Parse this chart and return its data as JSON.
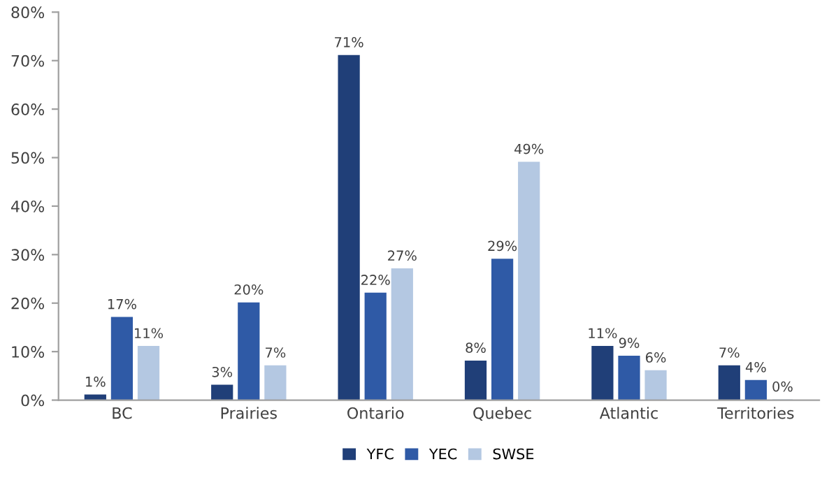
{
  "chart_data": {
    "type": "bar",
    "categories": [
      "BC",
      "Prairies",
      "Ontario",
      "Quebec",
      "Atlantic",
      "Territories"
    ],
    "series": [
      {
        "name": "YFC",
        "color": "#203f78",
        "values": [
          1,
          3,
          71,
          8,
          11,
          7
        ],
        "value_labels": [
          "1%",
          "3%",
          "71%",
          "8%",
          "11%",
          "7%"
        ]
      },
      {
        "name": "YEC",
        "color": "#2f5aa6",
        "values": [
          17,
          20,
          22,
          29,
          9,
          4
        ],
        "value_labels": [
          "17%",
          "20%",
          "22%",
          "29%",
          "9%",
          "4%"
        ]
      },
      {
        "name": "SWSE",
        "color": "#b4c8e2",
        "values": [
          11,
          7,
          27,
          49,
          6,
          0
        ],
        "value_labels": [
          "11%",
          "7%",
          "27%",
          "49%",
          "6%",
          "0%"
        ]
      }
    ],
    "ylim": [
      0,
      80
    ],
    "yticks": [
      {
        "value": 0,
        "label": "0%"
      },
      {
        "value": 10,
        "label": "10%"
      },
      {
        "value": 20,
        "label": "20%"
      },
      {
        "value": 30,
        "label": "30%"
      },
      {
        "value": 40,
        "label": "40%"
      },
      {
        "value": 50,
        "label": "50%"
      },
      {
        "value": 60,
        "label": "60%"
      },
      {
        "value": 70,
        "label": "70%"
      },
      {
        "value": 80,
        "label": "80%"
      }
    ],
    "grid": false,
    "legend": "bottom"
  }
}
